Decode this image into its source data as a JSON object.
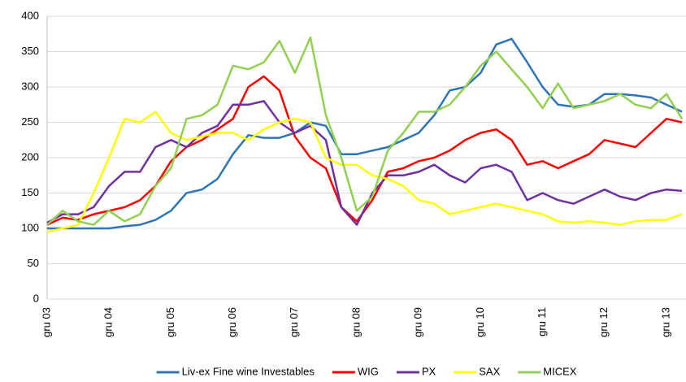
{
  "chart_data": {
    "type": "line",
    "categories": [
      "gru 03",
      null,
      null,
      null,
      "gru 04",
      null,
      null,
      null,
      "gru 05",
      null,
      null,
      null,
      "gru 06",
      null,
      null,
      null,
      "gru 07",
      null,
      null,
      null,
      "gru 08",
      null,
      null,
      null,
      "gru 09",
      null,
      null,
      null,
      "gru 10",
      null,
      null,
      null,
      "gru 11",
      null,
      null,
      null,
      "gru 12",
      null,
      null,
      null,
      "gru 13",
      null
    ],
    "ylim": [
      0,
      400
    ],
    "yticks": [
      0,
      50,
      100,
      150,
      200,
      250,
      300,
      350,
      400
    ],
    "grid": true,
    "legend": "bottom",
    "series": [
      {
        "name": "Liv-ex Fine wine Investables",
        "color": "#2e75b6",
        "values": [
          100,
          100,
          100,
          100,
          100,
          103,
          105,
          112,
          125,
          150,
          155,
          170,
          205,
          232,
          228,
          228,
          235,
          250,
          245,
          205,
          205,
          210,
          215,
          225,
          235,
          260,
          295,
          300,
          320,
          360,
          368,
          335,
          300,
          275,
          272,
          275,
          290,
          290,
          288,
          285,
          275,
          265
        ]
      },
      {
        "name": "WIG",
        "color": "#ff0000",
        "values": [
          105,
          115,
          112,
          120,
          125,
          130,
          140,
          160,
          195,
          215,
          225,
          240,
          255,
          300,
          315,
          295,
          230,
          200,
          185,
          130,
          110,
          140,
          180,
          185,
          195,
          200,
          210,
          225,
          235,
          240,
          225,
          190,
          195,
          185,
          195,
          205,
          225,
          220,
          215,
          235,
          255,
          250
        ]
      },
      {
        "name": "PX",
        "color": "#7030a0",
        "values": [
          108,
          120,
          120,
          130,
          160,
          180,
          180,
          215,
          225,
          215,
          235,
          245,
          275,
          275,
          280,
          250,
          235,
          245,
          225,
          130,
          105,
          150,
          175,
          175,
          180,
          190,
          175,
          165,
          185,
          190,
          180,
          140,
          150,
          140,
          135,
          145,
          155,
          145,
          140,
          150,
          155,
          153
        ]
      },
      {
        "name": "SAX",
        "color": "#ffff00",
        "values": [
          95,
          100,
          105,
          150,
          200,
          255,
          250,
          265,
          235,
          225,
          230,
          235,
          235,
          225,
          240,
          250,
          255,
          250,
          200,
          190,
          190,
          175,
          170,
          160,
          140,
          135,
          120,
          125,
          130,
          135,
          130,
          125,
          120,
          110,
          108,
          110,
          108,
          105,
          110,
          112,
          112,
          120
        ]
      },
      {
        "name": "MICEX",
        "color": "#92d050",
        "values": [
          105,
          125,
          110,
          105,
          125,
          110,
          120,
          160,
          185,
          255,
          260,
          275,
          330,
          325,
          335,
          365,
          320,
          370,
          260,
          200,
          125,
          145,
          210,
          235,
          265,
          265,
          275,
          300,
          330,
          350,
          325,
          300,
          270,
          305,
          270,
          275,
          280,
          290,
          275,
          270,
          290,
          255
        ]
      }
    ]
  }
}
